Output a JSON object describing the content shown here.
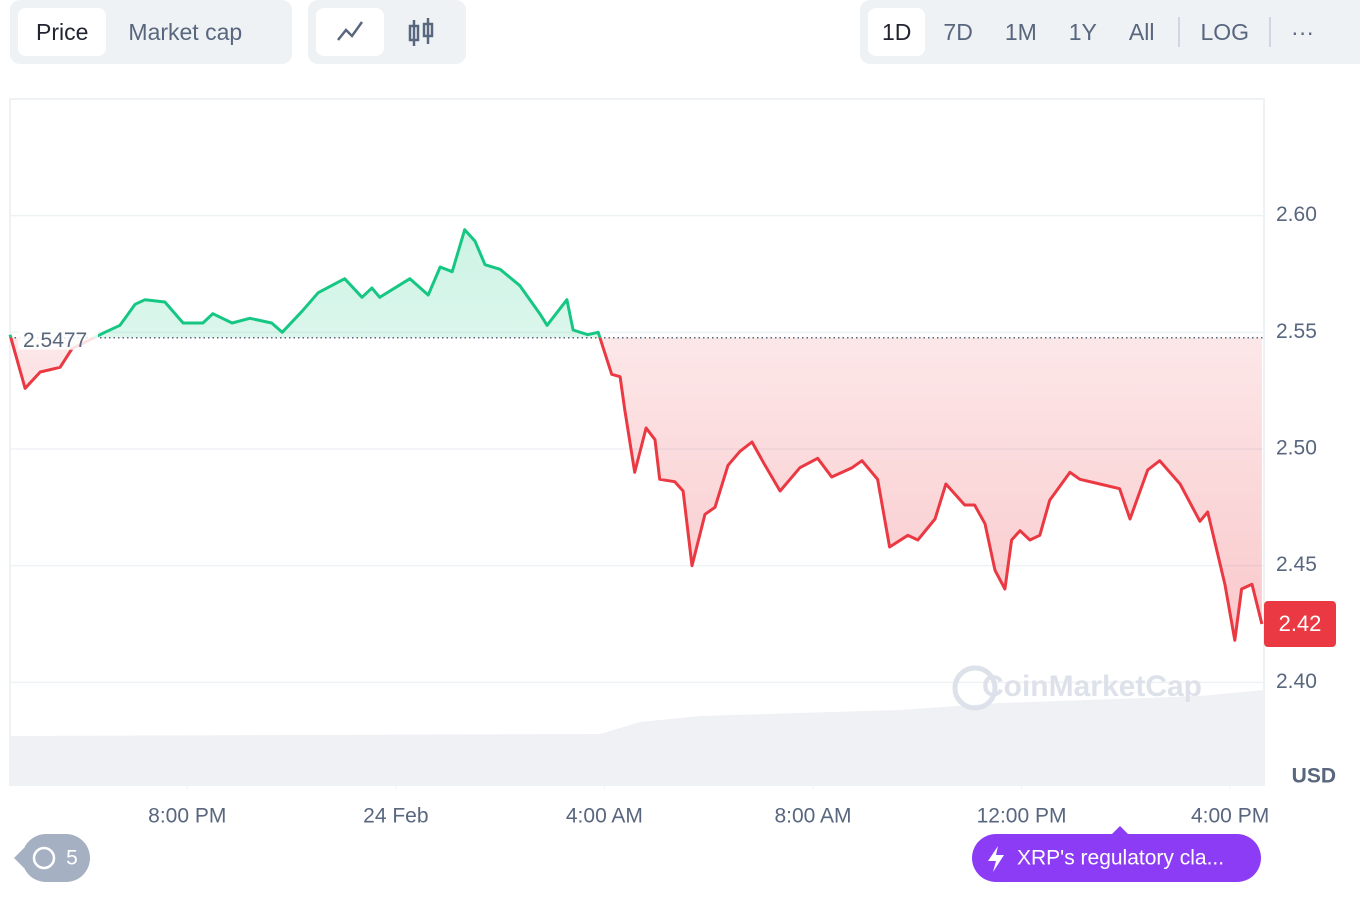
{
  "ui": {
    "tabs": [
      "Price",
      "Market cap"
    ],
    "ranges": [
      "1D",
      "7D",
      "1M",
      "1Y",
      "All",
      "LOG"
    ],
    "more": "···",
    "currency": "USD",
    "watermark": "CoinMarketCap",
    "history_count": "5",
    "news": "XRP's regulatory cla..."
  },
  "chart_data": {
    "type": "line",
    "x": [
      16.6,
      16.89,
      17.18,
      17.56,
      17.79,
      18.42,
      18.71,
      19.0,
      19.19,
      19.57,
      19.92,
      20.3,
      20.49,
      20.86,
      21.2,
      21.62,
      21.82,
      22.2,
      22.51,
      23.02,
      23.35,
      23.54,
      23.69,
      24.27,
      24.62,
      24.85,
      25.08,
      25.32,
      25.52,
      25.71,
      26.0,
      26.38,
      26.76,
      26.9,
      27.28,
      27.4,
      27.68,
      27.88,
      28.14,
      28.3,
      28.39,
      28.58,
      28.8,
      28.97,
      29.06,
      29.35,
      29.51,
      29.68,
      29.93,
      30.12,
      30.37,
      30.6,
      30.83,
      31.08,
      31.37,
      31.75,
      32.09,
      32.36,
      32.75,
      32.94,
      33.24,
      33.47,
      33.82,
      34.01,
      34.34,
      34.55,
      34.91,
      35.1,
      35.3,
      35.49,
      35.68,
      35.81,
      35.97,
      36.16,
      36.35,
      36.54,
      36.93,
      37.12,
      37.5,
      37.88,
      38.08,
      38.42,
      38.65,
      39.04,
      39.42,
      39.57,
      39.9,
      40.09,
      40.22,
      40.42,
      40.61
    ],
    "values": [
      2.549,
      2.526,
      2.533,
      2.535,
      2.543,
      2.55,
      2.553,
      2.562,
      2.564,
      2.563,
      2.554,
      2.554,
      2.558,
      2.554,
      2.556,
      2.554,
      2.55,
      2.559,
      2.567,
      2.573,
      2.565,
      2.569,
      2.565,
      2.573,
      2.566,
      2.578,
      2.576,
      2.594,
      2.589,
      2.579,
      2.577,
      2.57,
      2.558,
      2.553,
      2.564,
      2.551,
      2.549,
      2.55,
      2.532,
      2.531,
      2.517,
      2.49,
      2.509,
      2.504,
      2.487,
      2.486,
      2.482,
      2.45,
      2.472,
      2.475,
      2.493,
      2.499,
      2.503,
      2.493,
      2.482,
      2.492,
      2.496,
      2.488,
      2.492,
      2.495,
      2.487,
      2.458,
      2.463,
      2.461,
      2.47,
      2.485,
      2.476,
      2.476,
      2.468,
      2.448,
      2.44,
      2.461,
      2.465,
      2.461,
      2.463,
      2.478,
      2.49,
      2.487,
      2.485,
      2.483,
      2.47,
      2.491,
      2.495,
      2.485,
      2.469,
      2.473,
      2.442,
      2.418,
      2.44,
      2.442,
      2.425
    ],
    "reference_value": 2.5477,
    "last_price": 2.42,
    "up_color": "#16c784",
    "down_color": "#ea3943",
    "xlim": [
      16.6,
      40.65
    ],
    "xticks": [
      {
        "value": 20,
        "label": "8:00 PM"
      },
      {
        "value": 24,
        "label": "24 Feb"
      },
      {
        "value": 28,
        "label": "4:00 AM"
      },
      {
        "value": 32,
        "label": "8:00 AM"
      },
      {
        "value": 36,
        "label": "12:00 PM"
      },
      {
        "value": 40,
        "label": "4:00 PM"
      }
    ],
    "ylim": [
      2.356,
      2.65
    ],
    "yticks": [
      {
        "value": 2.4,
        "label": "2.40"
      },
      2.45,
      {
        "value": 2.5,
        "label": "2.50"
      },
      2.55,
      {
        "value": 2.6,
        "label": "2.60"
      }
    ],
    "grid": true
  }
}
